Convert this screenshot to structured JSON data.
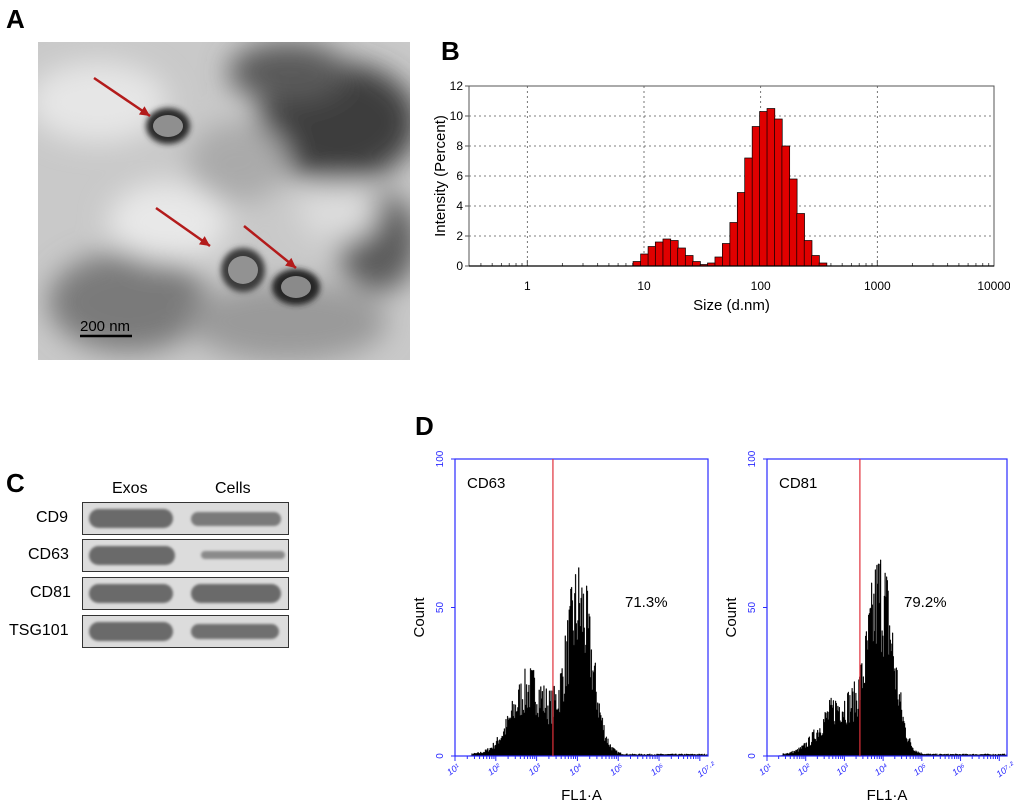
{
  "figure": {
    "panel_labels": [
      "A",
      "B",
      "C",
      "D"
    ]
  },
  "panelA": {
    "scale_bar_label": "200 nm",
    "arrow_color": "#b31b1b"
  },
  "panelB": {
    "chart_data": {
      "type": "bar",
      "xscale": "log",
      "xlabel": "Size (d.nm)",
      "ylabel": "Intensity (Percent)",
      "ylim": [
        0,
        12
      ],
      "yticks": [
        "0",
        "2",
        "4",
        "6",
        "8",
        "10",
        "12"
      ],
      "xticks": [
        "1",
        "10",
        "100",
        "1000",
        "10000"
      ],
      "bar_color": "#e00000",
      "sizes": [
        8.7,
        10.1,
        11.7,
        13.5,
        15.7,
        18.2,
        21.0,
        24.4,
        28.2,
        32.7,
        37.8,
        43.8,
        50.7,
        58.8,
        68.1,
        78.8,
        91.3,
        105.7,
        122.4,
        141.8,
        164.2,
        190.1,
        220.2,
        255.0,
        295.3,
        342.0
      ],
      "values": [
        0.3,
        0.8,
        1.3,
        1.6,
        1.8,
        1.7,
        1.2,
        0.7,
        0.3,
        0.1,
        0.2,
        0.6,
        1.5,
        2.9,
        4.9,
        7.2,
        9.3,
        10.3,
        10.5,
        9.8,
        8.0,
        5.8,
        3.5,
        1.7,
        0.7,
        0.2
      ]
    }
  },
  "panelC": {
    "column_headers": [
      "Exos",
      "Cells"
    ],
    "rows": [
      {
        "label": "CD9"
      },
      {
        "label": "CD63"
      },
      {
        "label": "CD81"
      },
      {
        "label": "TSG101"
      }
    ]
  },
  "panelD": {
    "chart_data": [
      {
        "type": "histogram",
        "marker": "CD63",
        "percent_label": "71.3%",
        "xlabel": "FL1·A",
        "ylabel": "Count",
        "ylim": [
          0,
          100
        ],
        "yticks": [
          "0",
          "50",
          "100"
        ],
        "xticks": [
          "10¹",
          "10²",
          "10³",
          "10⁴",
          "10⁵",
          "10⁶",
          "10⁷·²"
        ],
        "gate_log10": 3.4,
        "peaks": [
          {
            "center_log10": 2.85,
            "height": 25,
            "width": 0.45
          },
          {
            "center_log10": 4.05,
            "height": 55,
            "width": 0.32
          }
        ]
      },
      {
        "type": "histogram",
        "marker": "CD81",
        "percent_label": "79.2%",
        "xlabel": "FL1·A",
        "ylabel": "Count",
        "ylim": [
          0,
          100
        ],
        "yticks": [
          "0",
          "50",
          "100"
        ],
        "xticks": [
          "10¹",
          "10²",
          "10³",
          "10⁴",
          "10⁵",
          "10⁶",
          "10⁷·²"
        ],
        "gate_log10": 3.4,
        "peaks": [
          {
            "center_log10": 2.9,
            "height": 18,
            "width": 0.5
          },
          {
            "center_log10": 3.95,
            "height": 58,
            "width": 0.33
          }
        ]
      }
    ]
  }
}
